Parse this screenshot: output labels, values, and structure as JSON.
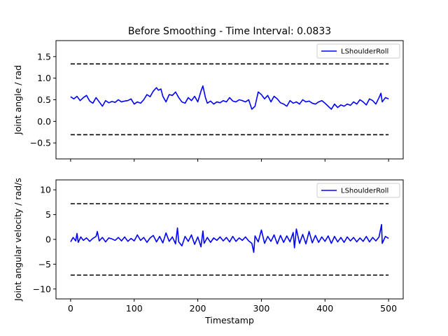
{
  "figure": {
    "title": "Before Smoothing - Time Interval: 0.0833"
  },
  "chart_data": [
    {
      "type": "line",
      "name": "angle",
      "ylabel": "Joint angle / rad",
      "xlabel": "",
      "xlim": [
        -23,
        523
      ],
      "ylim": [
        -0.87,
        1.87
      ],
      "xticks": [
        0,
        100,
        200,
        300,
        400,
        500
      ],
      "show_xtick_labels": false,
      "yticks": [
        -0.5,
        0.0,
        0.5,
        1.0,
        1.5
      ],
      "ytick_labels": [
        "−0.5",
        "0.0",
        "0.5",
        "1.0",
        "1.5"
      ],
      "legend": {
        "entries": [
          "LShoulderRoll"
        ],
        "position": "upper right"
      },
      "limits": [
        {
          "y": 1.33,
          "x": [
            0,
            500
          ],
          "style": "dashed",
          "color": "#000000"
        },
        {
          "y": -0.31,
          "x": [
            0,
            500
          ],
          "style": "dashed",
          "color": "#000000"
        }
      ],
      "series": [
        {
          "name": "LShoulderRoll",
          "color": "#0000ff",
          "x": [
            0,
            5,
            10,
            15,
            20,
            25,
            30,
            35,
            40,
            45,
            50,
            55,
            60,
            65,
            70,
            75,
            80,
            85,
            90,
            95,
            100,
            105,
            110,
            115,
            120,
            125,
            130,
            135,
            138,
            142,
            145,
            150,
            155,
            160,
            165,
            170,
            175,
            180,
            185,
            190,
            195,
            200,
            205,
            208,
            212,
            215,
            220,
            225,
            230,
            235,
            240,
            245,
            250,
            255,
            260,
            265,
            270,
            275,
            280,
            285,
            290,
            295,
            300,
            305,
            310,
            315,
            320,
            325,
            330,
            335,
            340,
            345,
            350,
            355,
            360,
            365,
            370,
            375,
            380,
            385,
            390,
            395,
            400,
            405,
            410,
            415,
            420,
            425,
            430,
            435,
            440,
            445,
            450,
            455,
            460,
            465,
            470,
            475,
            480,
            485,
            488,
            490,
            495,
            500
          ],
          "y": [
            0.57,
            0.52,
            0.58,
            0.48,
            0.55,
            0.6,
            0.47,
            0.42,
            0.55,
            0.45,
            0.35,
            0.48,
            0.43,
            0.46,
            0.44,
            0.5,
            0.45,
            0.47,
            0.48,
            0.52,
            0.4,
            0.45,
            0.42,
            0.5,
            0.62,
            0.57,
            0.7,
            0.78,
            0.72,
            0.75,
            0.58,
            0.45,
            0.62,
            0.6,
            0.68,
            0.55,
            0.45,
            0.42,
            0.55,
            0.48,
            0.58,
            0.45,
            0.7,
            0.82,
            0.55,
            0.42,
            0.47,
            0.4,
            0.45,
            0.43,
            0.48,
            0.45,
            0.55,
            0.47,
            0.45,
            0.5,
            0.48,
            0.45,
            0.5,
            0.28,
            0.35,
            0.68,
            0.62,
            0.52,
            0.6,
            0.45,
            0.58,
            0.52,
            0.43,
            0.4,
            0.35,
            0.48,
            0.42,
            0.45,
            0.4,
            0.5,
            0.45,
            0.47,
            0.42,
            0.4,
            0.45,
            0.48,
            0.42,
            0.35,
            0.28,
            0.4,
            0.32,
            0.38,
            0.35,
            0.4,
            0.37,
            0.45,
            0.4,
            0.5,
            0.45,
            0.38,
            0.52,
            0.48,
            0.4,
            0.55,
            0.65,
            0.45,
            0.55,
            0.52
          ]
        }
      ]
    },
    {
      "type": "line",
      "name": "velocity",
      "ylabel": "Joint angular velocity / rad/s",
      "xlabel": "Timestamp",
      "xlim": [
        -23,
        523
      ],
      "ylim": [
        -12,
        12
      ],
      "xticks": [
        0,
        100,
        200,
        300,
        400,
        500
      ],
      "xtick_labels": [
        "0",
        "100",
        "200",
        "300",
        "400",
        "500"
      ],
      "show_xtick_labels": true,
      "yticks": [
        -10,
        -5,
        0,
        5,
        10
      ],
      "ytick_labels": [
        "−10",
        "−5",
        "0",
        "5",
        "10"
      ],
      "legend": {
        "entries": [
          "LShoulderRoll"
        ],
        "position": "upper right"
      },
      "limits": [
        {
          "y": 7.2,
          "x": [
            0,
            500
          ],
          "style": "dashed",
          "color": "#000000"
        },
        {
          "y": -7.2,
          "x": [
            0,
            500
          ],
          "style": "dashed",
          "color": "#000000"
        }
      ],
      "series": [
        {
          "name": "LShoulderRoll",
          "color": "#0000ff",
          "x": [
            0,
            4,
            8,
            10,
            12,
            16,
            20,
            25,
            30,
            35,
            40,
            42,
            45,
            50,
            55,
            60,
            65,
            70,
            75,
            80,
            85,
            90,
            95,
            100,
            105,
            110,
            115,
            120,
            125,
            130,
            135,
            140,
            145,
            150,
            155,
            160,
            165,
            168,
            170,
            175,
            180,
            185,
            190,
            195,
            200,
            205,
            208,
            210,
            215,
            220,
            225,
            230,
            235,
            240,
            245,
            250,
            255,
            260,
            265,
            270,
            275,
            280,
            285,
            288,
            290,
            295,
            300,
            305,
            310,
            315,
            320,
            325,
            330,
            335,
            340,
            345,
            350,
            352,
            355,
            360,
            365,
            370,
            375,
            380,
            385,
            390,
            395,
            400,
            405,
            410,
            415,
            420,
            425,
            430,
            435,
            440,
            445,
            450,
            455,
            460,
            465,
            470,
            475,
            480,
            485,
            489,
            490,
            495,
            500
          ],
          "y": [
            -0.5,
            0.4,
            -0.3,
            1.2,
            -0.6,
            0.5,
            -0.2,
            0.3,
            -0.4,
            0.2,
            0.6,
            1.6,
            -0.3,
            0.4,
            -0.5,
            0.3,
            0.1,
            -0.2,
            0.4,
            -0.3,
            0.5,
            -0.4,
            0.2,
            -0.3,
            0.9,
            -0.2,
            0.4,
            -0.6,
            0.3,
            0.8,
            -0.5,
            0.6,
            -0.7,
            1.3,
            -0.4,
            0.5,
            -0.9,
            2.3,
            -0.5,
            -1.3,
            0.6,
            -0.4,
            0.9,
            -1.0,
            0.5,
            -1.5,
            1.7,
            -0.8,
            0.4,
            -0.6,
            0.3,
            -0.2,
            0.5,
            -0.3,
            0.4,
            -0.5,
            0.6,
            -0.4,
            0.3,
            -0.2,
            0.5,
            -0.3,
            -0.8,
            -2.6,
            0.7,
            -0.5,
            1.9,
            -0.8,
            0.6,
            -0.4,
            0.9,
            -0.9,
            0.8,
            -0.6,
            0.7,
            -0.5,
            1.4,
            -1.7,
            2.1,
            -0.8,
            1.0,
            -0.9,
            1.6,
            -0.7,
            0.8,
            -0.6,
            0.5,
            -0.4,
            0.7,
            -0.8,
            0.6,
            -0.5,
            0.4,
            -0.6,
            0.5,
            -0.3,
            0.4,
            -0.5,
            0.3,
            -0.4,
            0.6,
            -0.5,
            0.4,
            -0.3,
            0.5,
            3.0,
            -0.8,
            0.6,
            0.2
          ]
        }
      ]
    }
  ]
}
